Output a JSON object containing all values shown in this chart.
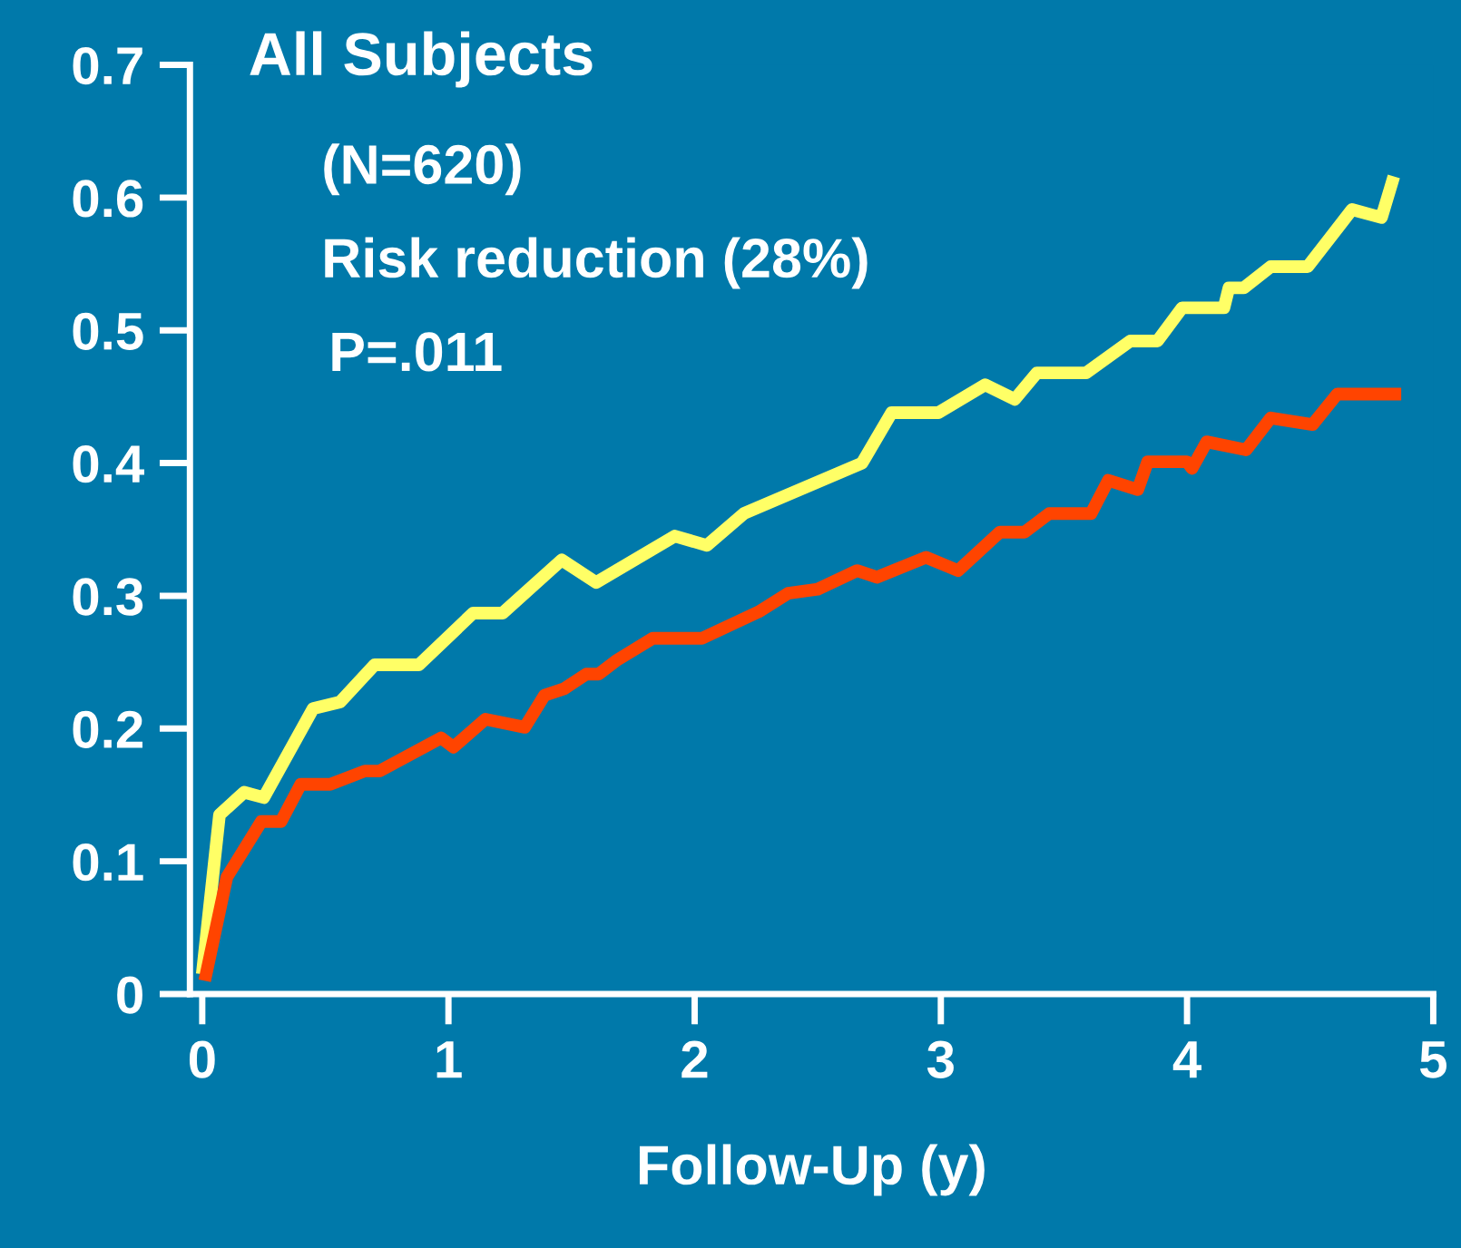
{
  "chart_data": {
    "type": "line",
    "title": "All Subjects",
    "xlabel": "Follow-Up (y)",
    "annotations": [
      "(N=620)",
      "Risk reduction (28%)",
      "P=.011"
    ],
    "xlim": [
      -0.05,
      5
    ],
    "xticks": [
      0,
      1,
      2,
      3,
      4,
      5
    ],
    "ylim": [
      0,
      0.7
    ],
    "yticks": [
      0,
      0.1,
      0.2,
      0.3,
      0.4,
      0.5,
      0.6,
      0.7
    ],
    "grid": false,
    "legend": false,
    "marker": "none",
    "line_style": "solid",
    "series": [
      {
        "color": "#ffff66",
        "x": [
          0,
          0.07,
          0.17,
          0.25,
          0.45,
          0.56,
          0.7,
          0.88,
          1.1,
          1.22,
          1.46,
          1.6,
          1.92,
          2.05,
          2.2,
          2.68,
          2.8,
          2.99,
          3.18,
          3.3,
          3.39,
          3.59,
          3.77,
          3.88,
          3.98,
          4.15,
          4.17,
          4.23,
          4.34,
          4.49,
          4.67,
          4.79,
          4.84
        ],
        "values": [
          0.015,
          0.135,
          0.152,
          0.148,
          0.215,
          0.22,
          0.248,
          0.248,
          0.287,
          0.287,
          0.327,
          0.31,
          0.345,
          0.338,
          0.362,
          0.4,
          0.438,
          0.438,
          0.459,
          0.448,
          0.468,
          0.468,
          0.492,
          0.492,
          0.517,
          0.517,
          0.532,
          0.532,
          0.548,
          0.548,
          0.591,
          0.585,
          0.616
        ]
      },
      {
        "color": "#ff4400",
        "x": [
          0.01,
          0.1,
          0.24,
          0.32,
          0.4,
          0.52,
          0.66,
          0.72,
          0.97,
          1.02,
          1.15,
          1.31,
          1.39,
          1.47,
          1.56,
          1.61,
          1.68,
          1.83,
          2.03,
          2.26,
          2.38,
          2.5,
          2.66,
          2.74,
          2.94,
          3.07,
          3.24,
          3.34,
          3.44,
          3.61,
          3.68,
          3.8,
          3.84,
          4.0,
          4.02,
          4.08,
          4.24,
          4.34,
          4.51,
          4.61,
          4.87
        ],
        "values": [
          0.01,
          0.088,
          0.13,
          0.13,
          0.158,
          0.158,
          0.168,
          0.168,
          0.193,
          0.186,
          0.207,
          0.201,
          0.225,
          0.23,
          0.241,
          0.241,
          0.251,
          0.268,
          0.268,
          0.288,
          0.302,
          0.305,
          0.319,
          0.314,
          0.329,
          0.319,
          0.348,
          0.348,
          0.362,
          0.362,
          0.387,
          0.38,
          0.401,
          0.401,
          0.396,
          0.416,
          0.41,
          0.434,
          0.429,
          0.452,
          0.452
        ]
      }
    ]
  }
}
